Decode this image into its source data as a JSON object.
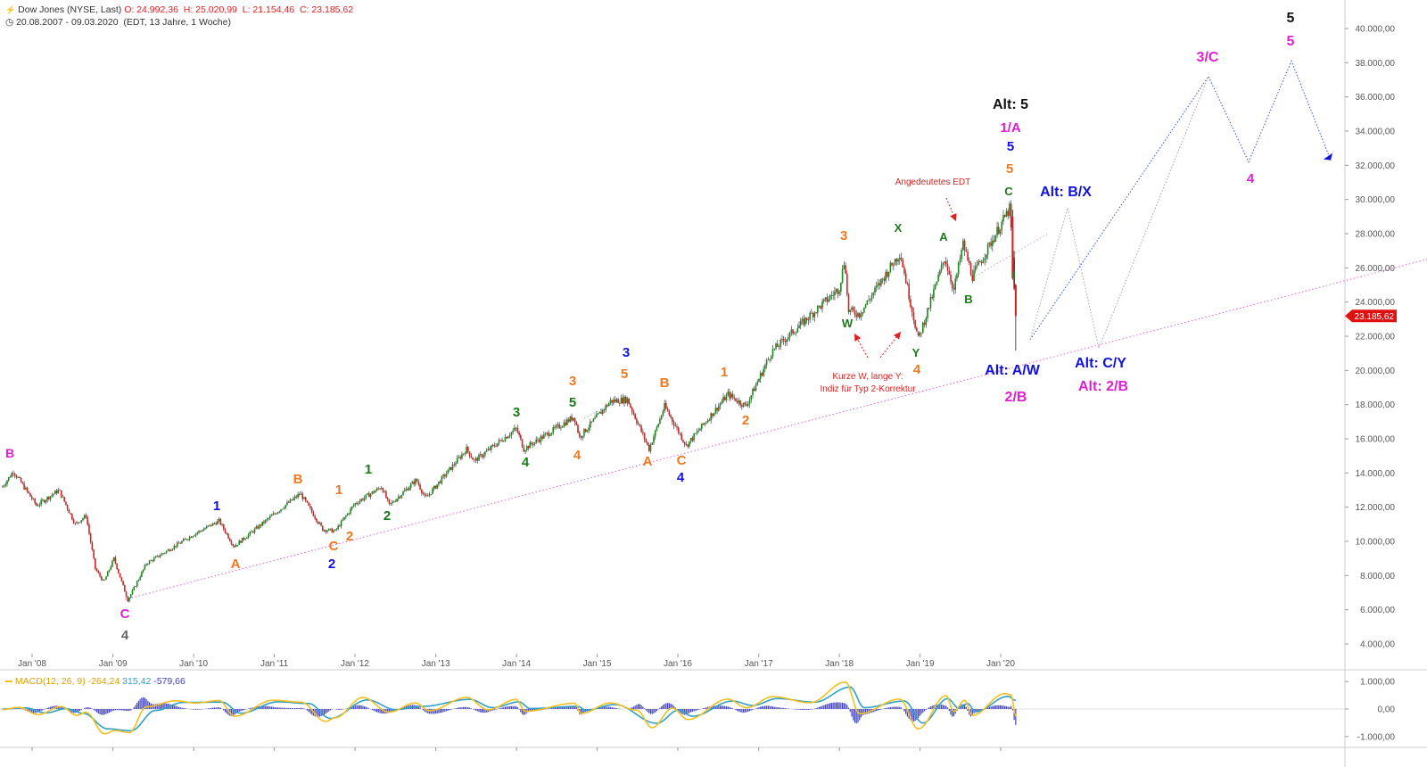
{
  "header": {
    "symbol_icon": "instrument-icon",
    "title": "Dow Jones (NYSE, Last)",
    "open": "O: 24.992,36",
    "high": "H: 25.020,99",
    "low": "L: 21.154,46",
    "close": "C: 23.185,62",
    "clock_icon": "clock-icon",
    "period": "20.08.2007 - 09.03.2020",
    "period_info": "(EDT, 13 Jahre, 1 Woche)"
  },
  "colors": {
    "up_candle": "#1a8a1a",
    "down_candle": "#d42020",
    "wave_magenta": "#e020d0",
    "wave_blue": "#1010e0",
    "wave_orange": "#f07820",
    "wave_green": "#1a7a1a",
    "wave_black": "#111111",
    "wave_gray": "#666666",
    "annotation_red": "#e02020",
    "macd_line": "#f0c020",
    "signal_line": "#30a0c8",
    "histogram": "#4040c0",
    "trendline": "#e060d0",
    "projection_blue": "#3050e0",
    "projection_gray": "#a0a0c0"
  },
  "chart_data": [
    {
      "type": "line",
      "subtype": "candlestick",
      "series_name": "Dow Jones (NYSE, Last)",
      "x_range": [
        "2007-08-20",
        "2020-03-09"
      ],
      "ylim": [
        4000,
        40000
      ],
      "y_ticks": [
        "4.000,00",
        "6.000,00",
        "8.000,00",
        "10.000,00",
        "12.000,00",
        "14.000,00",
        "16.000,00",
        "18.000,00",
        "20.000,00",
        "22.000,00",
        "24.000,00",
        "26.000,00",
        "28.000,00",
        "30.000,00",
        "32.000,00",
        "34.000,00",
        "36.000,00",
        "38.000,00",
        "40.000,00"
      ],
      "x_ticks": [
        "Jan '08",
        "Jan '09",
        "Jan '10",
        "Jan '11",
        "Jan '12",
        "Jan '13",
        "Jan '14",
        "Jan '15",
        "Jan '16",
        "Jan '17",
        "Jan '18",
        "Jan '19",
        "Jan '20"
      ],
      "x_tick_dates": [
        "2008-01-01",
        "2009-01-01",
        "2010-01-01",
        "2011-01-01",
        "2012-01-01",
        "2013-01-01",
        "2014-01-01",
        "2015-01-01",
        "2016-01-01",
        "2017-01-01",
        "2018-01-01",
        "2019-01-01",
        "2020-01-01"
      ],
      "last_price_label": "23.185,62",
      "key_points": [
        {
          "date": "2007-08-20",
          "value": 13200
        },
        {
          "date": "2007-10-08",
          "value": 14100
        },
        {
          "date": "2008-01-21",
          "value": 12100
        },
        {
          "date": "2008-05-01",
          "value": 13000
        },
        {
          "date": "2008-07-14",
          "value": 11000
        },
        {
          "date": "2008-09-01",
          "value": 11500
        },
        {
          "date": "2008-10-13",
          "value": 8400
        },
        {
          "date": "2008-11-20",
          "value": 7600
        },
        {
          "date": "2009-01-05",
          "value": 9000
        },
        {
          "date": "2009-03-09",
          "value": 6550
        },
        {
          "date": "2009-06-01",
          "value": 8700
        },
        {
          "date": "2009-12-31",
          "value": 10400
        },
        {
          "date": "2010-04-26",
          "value": 11200
        },
        {
          "date": "2010-07-02",
          "value": 9700
        },
        {
          "date": "2010-12-31",
          "value": 11600
        },
        {
          "date": "2011-04-29",
          "value": 12800
        },
        {
          "date": "2011-08-08",
          "value": 10700
        },
        {
          "date": "2011-10-03",
          "value": 10600
        },
        {
          "date": "2011-12-31",
          "value": 12200
        },
        {
          "date": "2012-05-01",
          "value": 13200
        },
        {
          "date": "2012-06-04",
          "value": 12100
        },
        {
          "date": "2012-10-05",
          "value": 13600
        },
        {
          "date": "2012-11-15",
          "value": 12500
        },
        {
          "date": "2013-05-20",
          "value": 15400
        },
        {
          "date": "2013-06-24",
          "value": 14700
        },
        {
          "date": "2013-12-31",
          "value": 16600
        },
        {
          "date": "2014-02-03",
          "value": 15400
        },
        {
          "date": "2014-09-19",
          "value": 17300
        },
        {
          "date": "2014-10-13",
          "value": 16100
        },
        {
          "date": "2015-03-02",
          "value": 18200
        },
        {
          "date": "2015-05-18",
          "value": 18300
        },
        {
          "date": "2015-08-24",
          "value": 15400
        },
        {
          "date": "2015-11-02",
          "value": 17900
        },
        {
          "date": "2016-02-08",
          "value": 15600
        },
        {
          "date": "2016-08-15",
          "value": 18600
        },
        {
          "date": "2016-11-04",
          "value": 17900
        },
        {
          "date": "2017-03-01",
          "value": 21100
        },
        {
          "date": "2017-12-31",
          "value": 24800
        },
        {
          "date": "2018-01-26",
          "value": 26600
        },
        {
          "date": "2018-02-09",
          "value": 23500
        },
        {
          "date": "2018-04-02",
          "value": 23300
        },
        {
          "date": "2018-10-03",
          "value": 26900
        },
        {
          "date": "2018-12-24",
          "value": 21800
        },
        {
          "date": "2019-04-23",
          "value": 26600
        },
        {
          "date": "2019-06-03",
          "value": 24700
        },
        {
          "date": "2019-07-15",
          "value": 27400
        },
        {
          "date": "2019-08-26",
          "value": 25500
        },
        {
          "date": "2020-02-12",
          "value": 29500
        },
        {
          "date": "2020-02-28",
          "value": 25400
        },
        {
          "date": "2020-03-09",
          "value": 23185
        }
      ]
    },
    {
      "type": "line",
      "series_name": "MACD(12, 26, 9)",
      "legend": {
        "name": "MACD(12, 26, 9)",
        "macd": "-264,24",
        "signal": "315,42",
        "histogram": "-579,66"
      },
      "ylim": [
        -1200,
        1200
      ],
      "y_ticks": [
        "1.000,00",
        "0,00",
        "-1.000,00"
      ],
      "macd_points": [
        {
          "date": "2007-08-20",
          "value": -20
        },
        {
          "date": "2007-11-01",
          "value": 60
        },
        {
          "date": "2008-01-28",
          "value": -200
        },
        {
          "date": "2008-05-12",
          "value": 90
        },
        {
          "date": "2008-07-21",
          "value": -230
        },
        {
          "date": "2008-09-01",
          "value": -120
        },
        {
          "date": "2008-11-24",
          "value": -900
        },
        {
          "date": "2009-01-12",
          "value": -780
        },
        {
          "date": "2009-03-16",
          "value": -860
        },
        {
          "date": "2009-06-01",
          "value": 80
        },
        {
          "date": "2009-10-12",
          "value": 300
        },
        {
          "date": "2010-01-11",
          "value": 220
        },
        {
          "date": "2010-04-26",
          "value": 310
        },
        {
          "date": "2010-07-05",
          "value": -260
        },
        {
          "date": "2010-12-27",
          "value": 320
        },
        {
          "date": "2011-05-02",
          "value": 250
        },
        {
          "date": "2011-08-22",
          "value": -450
        },
        {
          "date": "2011-10-03",
          "value": -320
        },
        {
          "date": "2012-02-06",
          "value": 420
        },
        {
          "date": "2012-06-04",
          "value": -110
        },
        {
          "date": "2012-10-01",
          "value": 220
        },
        {
          "date": "2012-12-03",
          "value": -60
        },
        {
          "date": "2013-05-20",
          "value": 420
        },
        {
          "date": "2013-08-26",
          "value": -30
        },
        {
          "date": "2013-12-30",
          "value": 350
        },
        {
          "date": "2014-02-10",
          "value": -80
        },
        {
          "date": "2014-09-22",
          "value": 210
        },
        {
          "date": "2014-10-20",
          "value": -160
        },
        {
          "date": "2015-03-02",
          "value": 220
        },
        {
          "date": "2015-06-29",
          "value": -40
        },
        {
          "date": "2015-09-07",
          "value": -680
        },
        {
          "date": "2015-12-07",
          "value": 30
        },
        {
          "date": "2016-02-15",
          "value": -380
        },
        {
          "date": "2016-08-15",
          "value": 360
        },
        {
          "date": "2016-11-07",
          "value": 50
        },
        {
          "date": "2017-03-06",
          "value": 450
        },
        {
          "date": "2017-08-21",
          "value": 230
        },
        {
          "date": "2018-01-29",
          "value": 980
        },
        {
          "date": "2018-04-02",
          "value": -170
        },
        {
          "date": "2018-10-01",
          "value": 360
        },
        {
          "date": "2018-12-24",
          "value": -720
        },
        {
          "date": "2019-04-29",
          "value": 490
        },
        {
          "date": "2019-06-03",
          "value": -90
        },
        {
          "date": "2019-07-22",
          "value": 320
        },
        {
          "date": "2019-08-26",
          "value": -230
        },
        {
          "date": "2020-01-20",
          "value": 560
        },
        {
          "date": "2020-02-17",
          "value": 520
        },
        {
          "date": "2020-03-09",
          "value": -264
        }
      ],
      "signal_points": [
        {
          "date": "2007-08-20",
          "value": 0
        },
        {
          "date": "2007-12-03",
          "value": 40
        },
        {
          "date": "2008-03-03",
          "value": -140
        },
        {
          "date": "2008-06-02",
          "value": 10
        },
        {
          "date": "2008-08-18",
          "value": -150
        },
        {
          "date": "2008-12-08",
          "value": -720
        },
        {
          "date": "2009-03-23",
          "value": -790
        },
        {
          "date": "2009-07-13",
          "value": -50
        },
        {
          "date": "2009-11-16",
          "value": 240
        },
        {
          "date": "2010-05-10",
          "value": 250
        },
        {
          "date": "2010-08-02",
          "value": -150
        },
        {
          "date": "2011-01-17",
          "value": 260
        },
        {
          "date": "2011-06-06",
          "value": 200
        },
        {
          "date": "2011-09-12",
          "value": -340
        },
        {
          "date": "2012-02-27",
          "value": 330
        },
        {
          "date": "2012-07-02",
          "value": -20
        },
        {
          "date": "2012-11-05",
          "value": 100
        },
        {
          "date": "2013-06-03",
          "value": 350
        },
        {
          "date": "2013-09-16",
          "value": 50
        },
        {
          "date": "2014-01-13",
          "value": 260
        },
        {
          "date": "2014-03-03",
          "value": 20
        },
        {
          "date": "2014-10-06",
          "value": 90
        },
        {
          "date": "2014-11-10",
          "value": -40
        },
        {
          "date": "2015-03-23",
          "value": 160
        },
        {
          "date": "2015-09-28",
          "value": -520
        },
        {
          "date": "2016-01-04",
          "value": -40
        },
        {
          "date": "2016-03-07",
          "value": -260
        },
        {
          "date": "2016-09-05",
          "value": 290
        },
        {
          "date": "2016-12-05",
          "value": 130
        },
        {
          "date": "2017-03-27",
          "value": 380
        },
        {
          "date": "2017-09-11",
          "value": 250
        },
        {
          "date": "2018-02-19",
          "value": 800
        },
        {
          "date": "2018-04-23",
          "value": 50
        },
        {
          "date": "2018-10-22",
          "value": 290
        },
        {
          "date": "2019-01-14",
          "value": -510
        },
        {
          "date": "2019-05-06",
          "value": 380
        },
        {
          "date": "2019-06-24",
          "value": 40
        },
        {
          "date": "2019-08-05",
          "value": 200
        },
        {
          "date": "2019-09-09",
          "value": -100
        },
        {
          "date": "2020-02-03",
          "value": 460
        },
        {
          "date": "2020-03-09",
          "value": 315
        }
      ]
    }
  ],
  "wave_labels": [
    {
      "text": "B",
      "color": "#e020d0"
    },
    {
      "text": "C",
      "color": "#e020d0"
    },
    {
      "text": "4",
      "color": "#666666"
    },
    {
      "text": "1",
      "color": "#1010e0"
    },
    {
      "text": "A",
      "color": "#f07820"
    },
    {
      "text": "B",
      "color": "#f07820"
    },
    {
      "text": "C",
      "color": "#f07820"
    },
    {
      "text": "2",
      "color": "#1010e0"
    },
    {
      "text": "1",
      "color": "#f07820"
    },
    {
      "text": "2",
      "color": "#f07820"
    },
    {
      "text": "1",
      "color": "#1a7a1a"
    },
    {
      "text": "2",
      "color": "#1a7a1a"
    },
    {
      "text": "3",
      "color": "#1a7a1a"
    },
    {
      "text": "4",
      "color": "#1a7a1a"
    },
    {
      "text": "3",
      "color": "#f07820"
    },
    {
      "text": "4",
      "color": "#f07820"
    },
    {
      "text": "5",
      "color": "#1a7a1a"
    },
    {
      "text": "3",
      "color": "#1010e0"
    },
    {
      "text": "5",
      "color": "#f07820"
    },
    {
      "text": "B",
      "color": "#f07820"
    },
    {
      "text": "A",
      "color": "#f07820"
    },
    {
      "text": "C",
      "color": "#f07820"
    },
    {
      "text": "4",
      "color": "#1010e0"
    },
    {
      "text": "1",
      "color": "#f07820"
    },
    {
      "text": "2",
      "color": "#f07820"
    },
    {
      "text": "3",
      "color": "#f07820"
    },
    {
      "text": "W",
      "color": "#1a7a1a"
    },
    {
      "text": "X",
      "color": "#1a7a1a"
    },
    {
      "text": "Y",
      "color": "#1a7a1a"
    },
    {
      "text": "4",
      "color": "#f07820"
    },
    {
      "text": "A",
      "color": "#1a7a1a"
    },
    {
      "text": "B",
      "color": "#1a7a1a"
    },
    {
      "text": "C",
      "color": "#1a7a1a"
    },
    {
      "text": "5",
      "color": "#f07820"
    },
    {
      "text": "5",
      "color": "#1010e0"
    },
    {
      "text": "1/A",
      "color": "#e020d0"
    },
    {
      "text": "Alt: 5",
      "color": "#111111"
    },
    {
      "text": "Alt: A/W",
      "color": "#1010e0"
    },
    {
      "text": "2/B",
      "color": "#e020d0"
    },
    {
      "text": "Alt: B/X",
      "color": "#1010e0"
    },
    {
      "text": "Alt: C/Y",
      "color": "#1010e0"
    },
    {
      "text": "Alt: 2/B",
      "color": "#e020d0"
    },
    {
      "text": "3/C",
      "color": "#e020d0"
    },
    {
      "text": "4",
      "color": "#e020d0"
    },
    {
      "text": "5",
      "color": "#e020d0"
    },
    {
      "text": "5",
      "color": "#111111"
    }
  ],
  "annotations": [
    {
      "text": "Angedeutetes EDT",
      "color": "#e02020"
    },
    {
      "text": "Kurze W, lange Y:",
      "color": "#e02020"
    },
    {
      "text": "Indiz für Typ 2-Korrektur",
      "color": "#e02020"
    }
  ]
}
